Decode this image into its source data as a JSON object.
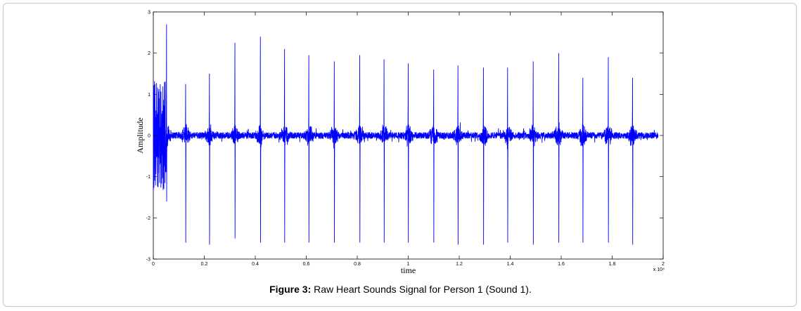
{
  "caption": {
    "label": "Figure 3:",
    "text": " Raw Heart Sounds Signal for Person 1 (Sound 1)."
  },
  "chart_data": {
    "type": "line",
    "title": "",
    "xlabel": "time",
    "ylabel": "Amplitude",
    "x_multiplier": "x 10⁴",
    "xlim": [
      0,
      2
    ],
    "ylim": [
      -3,
      3
    ],
    "x_ticks": [
      0,
      0.2,
      0.4,
      0.6,
      0.8,
      1,
      1.2,
      1.4,
      1.6,
      1.8,
      2
    ],
    "y_ticks": [
      -3,
      -2,
      -1,
      0,
      1,
      2,
      3
    ],
    "x_tick_labels": [
      "0",
      "0.2",
      "0.4",
      "0.6",
      "0.8",
      "1",
      "1.2",
      "1.4",
      "1.6",
      "1.8",
      "2"
    ],
    "y_tick_labels": [
      "-3",
      "-2",
      "-1",
      "0",
      "1",
      "2",
      "3"
    ],
    "grid": false,
    "line_color": "#0000ff",
    "series": [
      {
        "x_end": 1.98,
        "baseline_noise": 0.08,
        "onset_noise": {
          "x_start": 0,
          "x_end": 0.05,
          "amplitude": 1.3
        },
        "peaks": [
          {
            "x": 0.052,
            "max": 2.7,
            "min": -1.6
          },
          {
            "x": 0.127,
            "max": 1.25,
            "min": -2.6
          },
          {
            "x": 0.22,
            "max": 1.5,
            "min": -2.65
          },
          {
            "x": 0.32,
            "max": 2.25,
            "min": -2.5
          },
          {
            "x": 0.42,
            "max": 2.4,
            "min": -2.6
          },
          {
            "x": 0.515,
            "max": 2.1,
            "min": -2.6
          },
          {
            "x": 0.61,
            "max": 1.95,
            "min": -2.6
          },
          {
            "x": 0.71,
            "max": 1.8,
            "min": -2.6
          },
          {
            "x": 0.81,
            "max": 1.95,
            "min": -2.6
          },
          {
            "x": 0.905,
            "max": 1.85,
            "min": -2.6
          },
          {
            "x": 1.0,
            "max": 1.75,
            "min": -2.6
          },
          {
            "x": 1.1,
            "max": 1.6,
            "min": -2.6
          },
          {
            "x": 1.195,
            "max": 1.7,
            "min": -2.65
          },
          {
            "x": 1.295,
            "max": 1.65,
            "min": -2.65
          },
          {
            "x": 1.39,
            "max": 1.65,
            "min": -2.6
          },
          {
            "x": 1.49,
            "max": 1.8,
            "min": -2.65
          },
          {
            "x": 1.59,
            "max": 2.0,
            "min": -2.6
          },
          {
            "x": 1.685,
            "max": 1.4,
            "min": -2.6
          },
          {
            "x": 1.785,
            "max": 1.9,
            "min": -2.6
          },
          {
            "x": 1.88,
            "max": 1.4,
            "min": -2.65
          }
        ]
      }
    ]
  }
}
